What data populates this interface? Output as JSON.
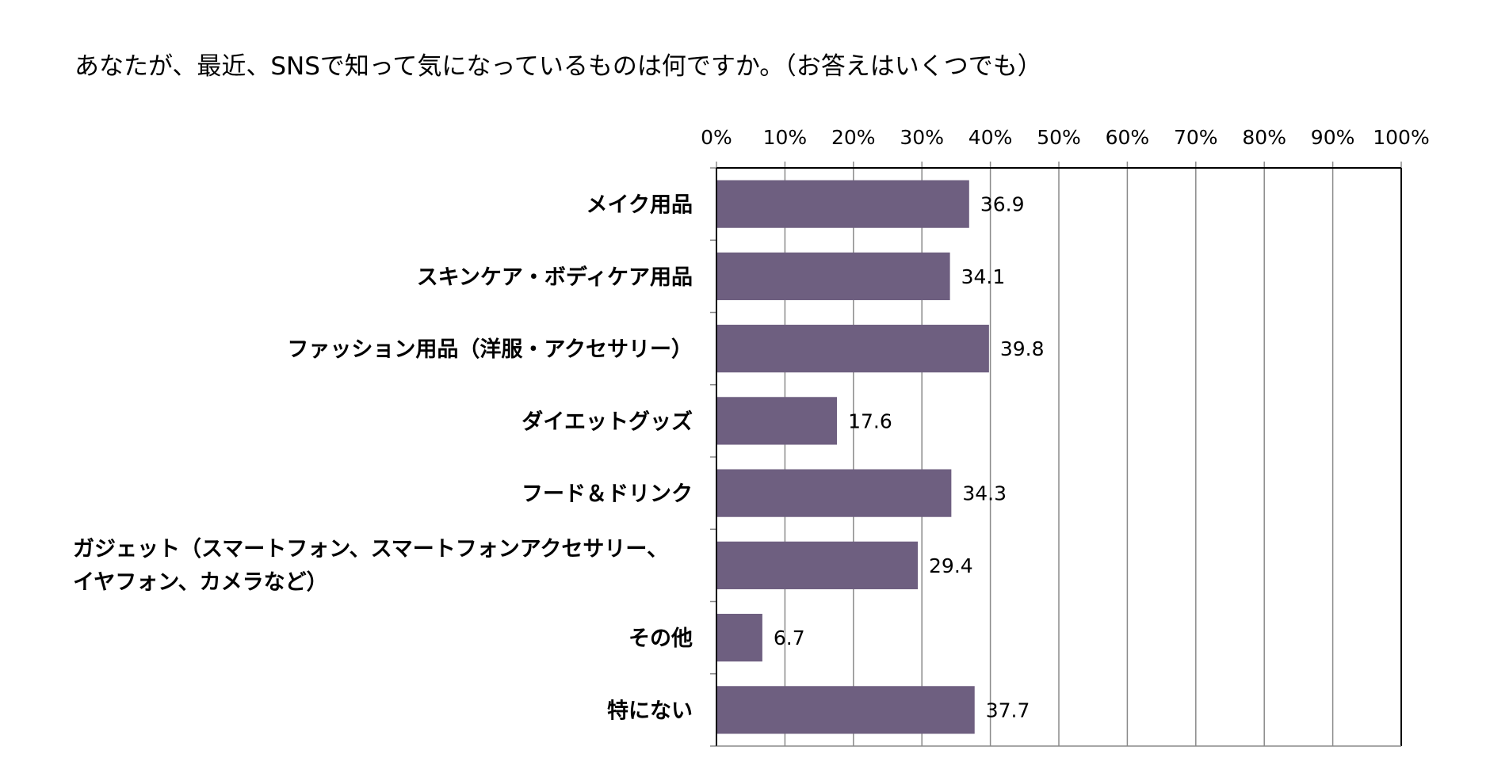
{
  "chart_data": {
    "type": "bar",
    "orientation": "horizontal",
    "title": "あなたが、最近、SNSで知って気になっているものは何ですか。（お答えはいくつでも）",
    "categories": [
      "メイク用品",
      "スキンケア・ボディケア用品",
      "ファッション用品（洋服・アクセサリー）",
      "ダイエットグッズ",
      "フード＆ドリンク",
      "ガジェット（スマートフォン、スマートフォンアクセサリー、イヤフォン、カメラなど）",
      "その他",
      "特にない"
    ],
    "category_lines": [
      [
        "メイク用品"
      ],
      [
        "スキンケア・ボディケア用品"
      ],
      [
        "ファッション用品（洋服・アクセサリー）"
      ],
      [
        "ダイエットグッズ"
      ],
      [
        "フード＆ドリンク"
      ],
      [
        "ガジェット（スマートフォン、スマートフォンアクセサリー、",
        "イヤフォン、カメラなど）"
      ],
      [
        "その他"
      ],
      [
        "特にない"
      ]
    ],
    "values": [
      36.9,
      34.1,
      39.8,
      17.6,
      34.3,
      29.4,
      6.7,
      37.7
    ],
    "value_labels": [
      "36.9",
      "34.1",
      "39.8",
      "17.6",
      "34.3",
      "29.4",
      "6.7",
      "37.7"
    ],
    "xlim": [
      0,
      100
    ],
    "xticks": [
      "0%",
      "10%",
      "20%",
      "30%",
      "40%",
      "50%",
      "60%",
      "70%",
      "80%",
      "90%",
      "100%"
    ],
    "axis_position": "top",
    "grid": true,
    "bar_color": "#6e5f80"
  }
}
